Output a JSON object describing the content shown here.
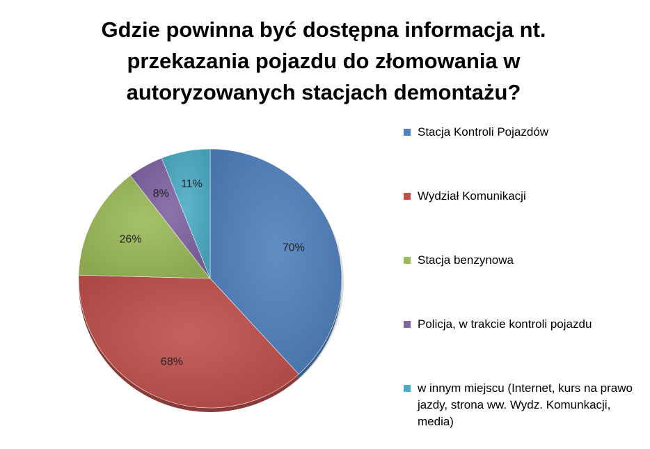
{
  "chart_data": {
    "type": "pie",
    "title": "Gdzie powinna być dostępna informacja nt. przekazania pojazdu do złomowania w autoryzowanych stacjach demontażu?",
    "legend_position": "right",
    "slices": [
      {
        "name": "Stacja Kontroli Pojazdów",
        "value": 70,
        "label": "70%",
        "color": "#4F81BD"
      },
      {
        "name": "Wydział Komunikacji",
        "value": 68,
        "label": "68%",
        "color": "#C0504D"
      },
      {
        "name": "Stacja benzynowa",
        "value": 26,
        "label": "26%",
        "color": "#9BBB59"
      },
      {
        "name": "Policja, w trakcie kontroli pojazdu",
        "value": 8,
        "label": "8%",
        "color": "#8064A2"
      },
      {
        "name": "w innym miejscu (Internet, kurs na prawo jazdy, strona ww. Wydz. Komunkacji, media)",
        "value": 11,
        "label": "11%",
        "color": "#4BACC6"
      }
    ]
  }
}
